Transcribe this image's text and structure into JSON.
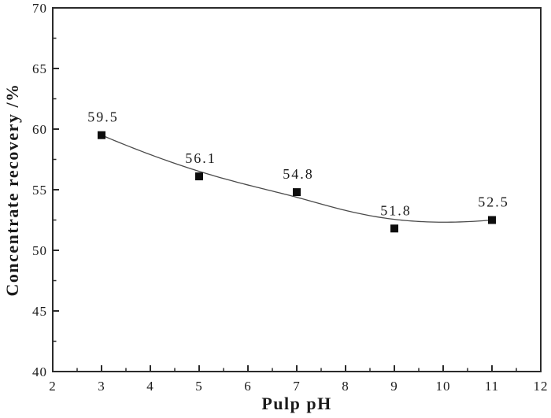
{
  "chart_data": {
    "type": "line",
    "title": "",
    "xlabel": "Pulp pH",
    "ylabel": "Concentrate recovery /%",
    "xlim": [
      2,
      12
    ],
    "ylim": [
      40,
      70
    ],
    "x_major_ticks": [
      2,
      3,
      4,
      5,
      6,
      7,
      8,
      9,
      10,
      11,
      12
    ],
    "x_minor_step": 0.5,
    "y_major_ticks": [
      40,
      45,
      50,
      55,
      60,
      65,
      70
    ],
    "y_minor_step": 2.5,
    "grid": false,
    "legend": false,
    "series": [
      {
        "name": "concentrate-recovery",
        "x": [
          3,
          5,
          7,
          9,
          11
        ],
        "y": [
          59.5,
          56.1,
          54.8,
          51.8,
          52.5
        ],
        "point_labels": [
          "59.5",
          "56.1",
          "54.8",
          "51.8",
          "52.5"
        ],
        "marker": "square",
        "line_style": "b-spline-smooth"
      }
    ],
    "colors": {
      "axis": "#2b2b2b",
      "curve": "#4a4a4a",
      "marker": "#0d0d0d",
      "text": "#1a1a1a",
      "background": "#ffffff"
    }
  }
}
